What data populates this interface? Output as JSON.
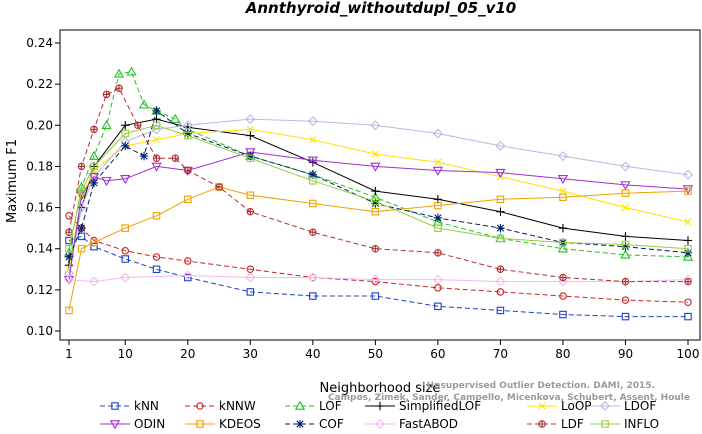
{
  "chart_data": {
    "type": "line",
    "title": "Annthyroid_withoutdupl_05_v10",
    "xlabel": "Neighborhood size",
    "ylabel": "Maximum F1",
    "xlim": [
      1,
      100
    ],
    "ylim": [
      0.1,
      0.24
    ],
    "x_ticks": [
      "1",
      "10",
      "20",
      "30",
      "40",
      "50",
      "60",
      "70",
      "80",
      "90",
      "100"
    ],
    "y_ticks": [
      "0.10",
      "0.12",
      "0.14",
      "0.16",
      "0.18",
      "0.20",
      "0.22",
      "0.24"
    ],
    "legend_position": "bottom",
    "watermark": [
      "Unsupervised Outlier Detection. DAMI, 2015.",
      "Campos, Zimek, Sander, Campello, Micenkova, Schubert, Assent, Houle"
    ],
    "series": [
      {
        "name": "kNN",
        "color": "#1f3fd0",
        "marker": "square",
        "dash": "5,3",
        "points": [
          [
            1,
            0.144
          ],
          [
            3,
            0.146
          ],
          [
            5,
            0.141
          ],
          [
            10,
            0.135
          ],
          [
            15,
            0.13
          ],
          [
            20,
            0.126
          ],
          [
            30,
            0.119
          ],
          [
            40,
            0.117
          ],
          [
            50,
            0.117
          ],
          [
            60,
            0.112
          ],
          [
            70,
            0.11
          ],
          [
            80,
            0.108
          ],
          [
            90,
            0.107
          ],
          [
            100,
            0.107
          ]
        ]
      },
      {
        "name": "kNNW",
        "color": "#d02020",
        "marker": "circle",
        "dash": "5,3",
        "points": [
          [
            1,
            0.156
          ],
          [
            3,
            0.15
          ],
          [
            5,
            0.144
          ],
          [
            10,
            0.139
          ],
          [
            15,
            0.136
          ],
          [
            20,
            0.134
          ],
          [
            30,
            0.13
          ],
          [
            40,
            0.126
          ],
          [
            50,
            0.124
          ],
          [
            60,
            0.121
          ],
          [
            70,
            0.119
          ],
          [
            80,
            0.117
          ],
          [
            90,
            0.115
          ],
          [
            100,
            0.114
          ]
        ]
      },
      {
        "name": "LOF",
        "color": "#22c422",
        "marker": "triangle",
        "dash": "5,3",
        "points": [
          [
            1,
            0.138
          ],
          [
            3,
            0.17
          ],
          [
            5,
            0.185
          ],
          [
            7,
            0.2
          ],
          [
            9,
            0.225
          ],
          [
            11,
            0.226
          ],
          [
            13,
            0.21
          ],
          [
            15,
            0.207
          ],
          [
            18,
            0.203
          ],
          [
            20,
            0.198
          ],
          [
            30,
            0.185
          ],
          [
            40,
            0.176
          ],
          [
            50,
            0.165
          ],
          [
            60,
            0.153
          ],
          [
            70,
            0.145
          ],
          [
            80,
            0.14
          ],
          [
            90,
            0.137
          ],
          [
            100,
            0.136
          ]
        ]
      },
      {
        "name": "SimplifiedLOF",
        "color": "#000000",
        "marker": "plus",
        "dash": "",
        "points": [
          [
            1,
            0.132
          ],
          [
            3,
            0.16
          ],
          [
            5,
            0.18
          ],
          [
            10,
            0.2
          ],
          [
            15,
            0.203
          ],
          [
            20,
            0.199
          ],
          [
            30,
            0.195
          ],
          [
            40,
            0.182
          ],
          [
            50,
            0.168
          ],
          [
            60,
            0.164
          ],
          [
            70,
            0.158
          ],
          [
            80,
            0.15
          ],
          [
            90,
            0.146
          ],
          [
            100,
            0.144
          ]
        ]
      },
      {
        "name": "LoOP",
        "color": "#ffe000",
        "marker": "x",
        "dash": "",
        "points": [
          [
            1,
            0.13
          ],
          [
            3,
            0.165
          ],
          [
            5,
            0.178
          ],
          [
            10,
            0.19
          ],
          [
            15,
            0.193
          ],
          [
            20,
            0.196
          ],
          [
            30,
            0.198
          ],
          [
            40,
            0.193
          ],
          [
            50,
            0.186
          ],
          [
            60,
            0.182
          ],
          [
            70,
            0.175
          ],
          [
            80,
            0.168
          ],
          [
            90,
            0.16
          ],
          [
            100,
            0.153
          ]
        ]
      },
      {
        "name": "LDOF",
        "color": "#b8b8e8",
        "marker": "diamond",
        "dash": "",
        "points": [
          [
            1,
            0.128
          ],
          [
            3,
            0.16
          ],
          [
            5,
            0.175
          ],
          [
            10,
            0.192
          ],
          [
            15,
            0.198
          ],
          [
            20,
            0.2
          ],
          [
            30,
            0.203
          ],
          [
            40,
            0.202
          ],
          [
            50,
            0.2
          ],
          [
            60,
            0.196
          ],
          [
            70,
            0.19
          ],
          [
            80,
            0.185
          ],
          [
            90,
            0.18
          ],
          [
            100,
            0.176
          ]
        ]
      },
      {
        "name": "ODIN",
        "color": "#a030d0",
        "marker": "invtriangle",
        "dash": "",
        "points": [
          [
            1,
            0.125
          ],
          [
            3,
            0.166
          ],
          [
            5,
            0.175
          ],
          [
            7,
            0.173
          ],
          [
            10,
            0.174
          ],
          [
            15,
            0.18
          ],
          [
            20,
            0.178
          ],
          [
            30,
            0.187
          ],
          [
            40,
            0.183
          ],
          [
            50,
            0.18
          ],
          [
            60,
            0.178
          ],
          [
            70,
            0.177
          ],
          [
            80,
            0.174
          ],
          [
            90,
            0.171
          ],
          [
            100,
            0.169
          ]
        ]
      },
      {
        "name": "KDEOS",
        "color": "#f0a000",
        "marker": "square",
        "dash": "",
        "points": [
          [
            1,
            0.11
          ],
          [
            3,
            0.14
          ],
          [
            5,
            0.143
          ],
          [
            10,
            0.15
          ],
          [
            15,
            0.156
          ],
          [
            20,
            0.164
          ],
          [
            25,
            0.17
          ],
          [
            30,
            0.166
          ],
          [
            40,
            0.162
          ],
          [
            50,
            0.158
          ],
          [
            60,
            0.161
          ],
          [
            70,
            0.164
          ],
          [
            80,
            0.165
          ],
          [
            90,
            0.167
          ],
          [
            100,
            0.168
          ]
        ]
      },
      {
        "name": "COF",
        "color": "#00206e",
        "marker": "asterisk",
        "dash": "5,3",
        "points": [
          [
            1,
            0.136
          ],
          [
            3,
            0.15
          ],
          [
            5,
            0.172
          ],
          [
            10,
            0.19
          ],
          [
            13,
            0.185
          ],
          [
            15,
            0.207
          ],
          [
            20,
            0.196
          ],
          [
            30,
            0.185
          ],
          [
            40,
            0.176
          ],
          [
            50,
            0.162
          ],
          [
            60,
            0.155
          ],
          [
            70,
            0.15
          ],
          [
            80,
            0.143
          ],
          [
            90,
            0.141
          ],
          [
            100,
            0.138
          ]
        ]
      },
      {
        "name": "FastABOD",
        "color": "#f4b8ee",
        "marker": "diamond",
        "dash": "",
        "points": [
          [
            1,
            0.125
          ],
          [
            5,
            0.124
          ],
          [
            10,
            0.126
          ],
          [
            20,
            0.127
          ],
          [
            30,
            0.126
          ],
          [
            40,
            0.126
          ],
          [
            50,
            0.125
          ],
          [
            60,
            0.125
          ],
          [
            70,
            0.124
          ],
          [
            80,
            0.124
          ],
          [
            90,
            0.124
          ],
          [
            100,
            0.125
          ]
        ]
      },
      {
        "name": "LDF",
        "color": "#b03030",
        "marker": "circleplus",
        "dash": "5,3",
        "points": [
          [
            1,
            0.148
          ],
          [
            3,
            0.18
          ],
          [
            5,
            0.198
          ],
          [
            7,
            0.215
          ],
          [
            9,
            0.218
          ],
          [
            12,
            0.2
          ],
          [
            15,
            0.184
          ],
          [
            18,
            0.184
          ],
          [
            20,
            0.178
          ],
          [
            25,
            0.17
          ],
          [
            30,
            0.158
          ],
          [
            40,
            0.148
          ],
          [
            50,
            0.14
          ],
          [
            60,
            0.138
          ],
          [
            70,
            0.13
          ],
          [
            80,
            0.126
          ],
          [
            90,
            0.124
          ],
          [
            100,
            0.124
          ]
        ]
      },
      {
        "name": "INFLO",
        "color": "#98cc40",
        "marker": "square",
        "dash": "",
        "points": [
          [
            1,
            0.14
          ],
          [
            3,
            0.168
          ],
          [
            5,
            0.18
          ],
          [
            10,
            0.196
          ],
          [
            15,
            0.2
          ],
          [
            20,
            0.195
          ],
          [
            30,
            0.184
          ],
          [
            40,
            0.173
          ],
          [
            50,
            0.163
          ],
          [
            60,
            0.15
          ],
          [
            70,
            0.145
          ],
          [
            80,
            0.143
          ],
          [
            90,
            0.142
          ],
          [
            100,
            0.14
          ]
        ]
      }
    ]
  }
}
